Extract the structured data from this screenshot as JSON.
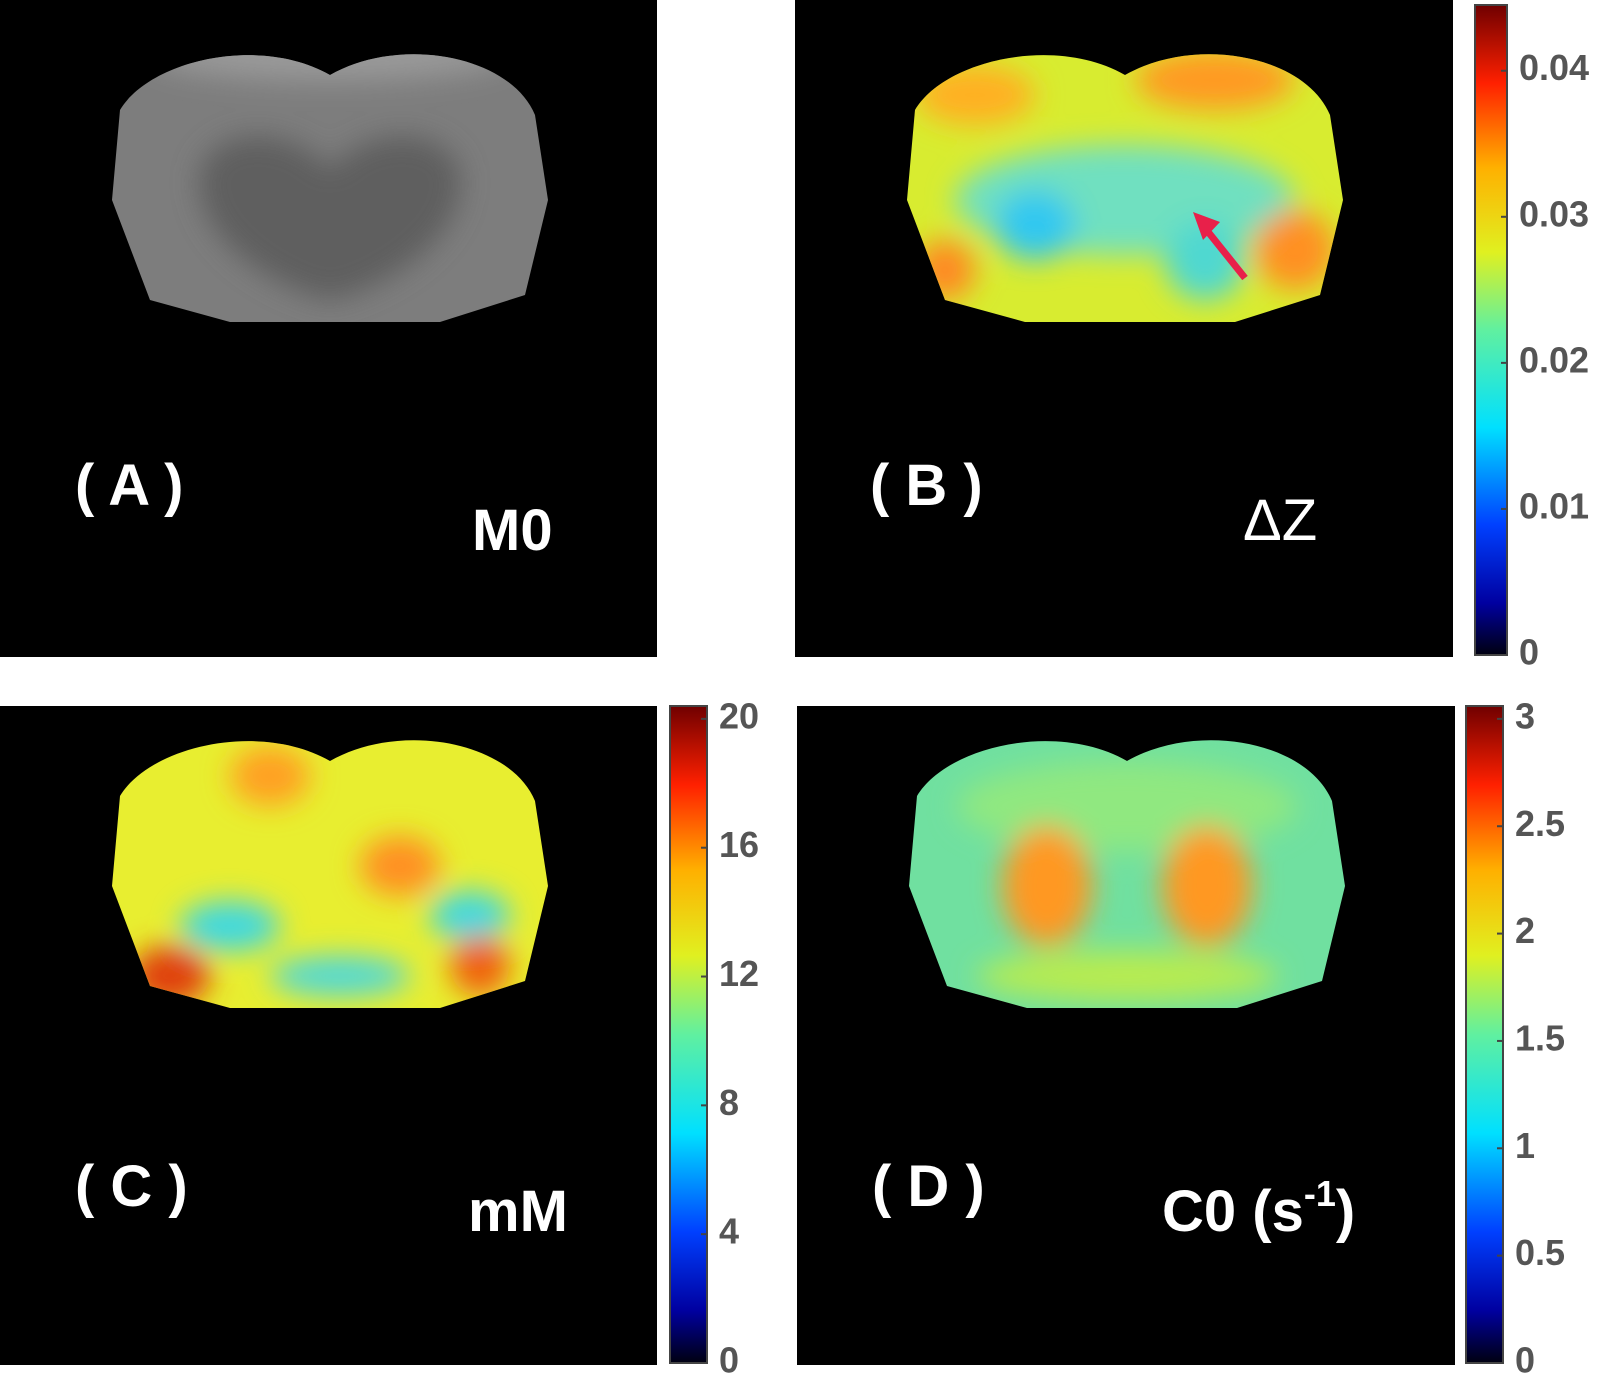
{
  "panels": [
    {
      "label": "( A )",
      "quantity": "M0"
    },
    {
      "label": "( B )",
      "quantity": "ΔZ"
    },
    {
      "label": "( C )",
      "quantity": "mM"
    },
    {
      "label": "( D )",
      "quantity_parts": [
        "C0 (s",
        "-1",
        ")"
      ]
    }
  ],
  "colorbars": [
    {
      "panel": "( B )",
      "lim": [
        0,
        0.0445
      ],
      "ticks": [
        0,
        0.01,
        0.02,
        0.03,
        0.04
      ]
    },
    {
      "panel": "( C )",
      "lim": [
        0,
        20.4
      ],
      "ticks": [
        0,
        4,
        8,
        12,
        16,
        20
      ]
    },
    {
      "panel": "( D )",
      "lim": [
        0,
        3.06
      ],
      "ticks": [
        0,
        0.5,
        1,
        1.5,
        2,
        2.5,
        3
      ]
    }
  ]
}
